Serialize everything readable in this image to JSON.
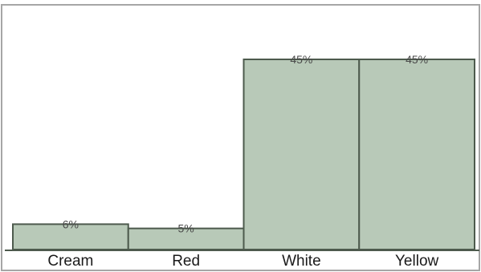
{
  "chart_data": {
    "type": "bar",
    "categories": [
      "Cream",
      "Red",
      "White",
      "Yellow"
    ],
    "values": [
      6,
      5,
      45,
      45
    ],
    "data_labels": [
      "6%",
      "5%",
      "45%",
      "45%"
    ],
    "title": "",
    "xlabel": "",
    "ylabel": "",
    "ylim": [
      0,
      100
    ],
    "grid": false,
    "legend": "none",
    "bar_color": "#b8c9b8",
    "bar_edge_color": "#4d5a4d",
    "frame_color": "#a6a6a6"
  }
}
